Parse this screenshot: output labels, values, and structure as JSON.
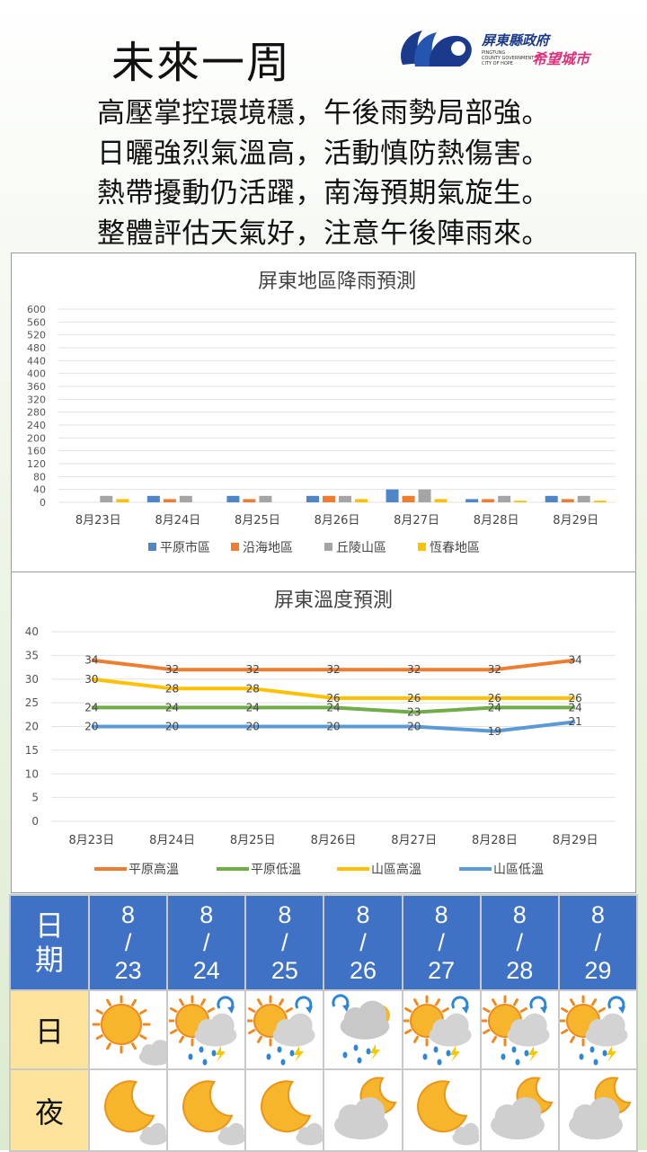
{
  "header": {
    "title": "未來一周"
  },
  "logo": {
    "name": "屏東縣政府",
    "slogan": "希望城市",
    "small_text": [
      "PINGTUNG",
      "COUNTY GOVERNMENT",
      "CITY OF HOPE"
    ]
  },
  "poem": [
    "高壓掌控環境穩，午後雨勢局部強。",
    "日曬強烈氣溫高，活動慎防熱傷害。",
    "熱帶擾動仍活躍，南海預期氣旋生。",
    "整體評估天氣好，注意午後陣雨來。"
  ],
  "chart_data": [
    {
      "type": "bar",
      "title": "屏東地區降雨預測",
      "categories": [
        "8月23日",
        "8月24日",
        "8月25日",
        "8月26日",
        "8月27日",
        "8月28日",
        "8月29日"
      ],
      "ylim": [
        0,
        600
      ],
      "yticks": [
        0,
        40,
        80,
        120,
        160,
        200,
        240,
        280,
        320,
        360,
        400,
        440,
        480,
        520,
        560,
        600
      ],
      "grid": true,
      "legend_position": "bottom",
      "series": [
        {
          "name": "平原市區",
          "color": "#4f86c6",
          "values": [
            0,
            20,
            20,
            20,
            40,
            10,
            20
          ]
        },
        {
          "name": "沿海地區",
          "color": "#ed7d31",
          "values": [
            0,
            10,
            10,
            20,
            20,
            10,
            10
          ]
        },
        {
          "name": "丘陵山區",
          "color": "#a5a5a5",
          "values": [
            20,
            20,
            20,
            20,
            40,
            20,
            20
          ]
        },
        {
          "name": "恆春地區",
          "color": "#ffc000",
          "values": [
            10,
            0,
            0,
            10,
            10,
            5,
            5
          ]
        }
      ]
    },
    {
      "type": "line",
      "title": "屏東溫度預測",
      "categories": [
        "8月23日",
        "8月24日",
        "8月25日",
        "8月26日",
        "8月27日",
        "8月28日",
        "8月29日"
      ],
      "ylim": [
        0,
        40
      ],
      "yticks": [
        0,
        5,
        10,
        15,
        20,
        25,
        30,
        35,
        40
      ],
      "grid": true,
      "legend_position": "bottom",
      "series": [
        {
          "name": "平原高溫",
          "color": "#ed7d31",
          "values": [
            34,
            32,
            32,
            32,
            32,
            32,
            34
          ]
        },
        {
          "name": "平原低溫",
          "color": "#70ad47",
          "values": [
            24,
            24,
            24,
            24,
            23,
            24,
            24
          ]
        },
        {
          "name": "山區高溫",
          "color": "#ffc000",
          "values": [
            30,
            28,
            28,
            26,
            26,
            26,
            26
          ]
        },
        {
          "name": "山區低溫",
          "color": "#5b9bd5",
          "values": [
            20,
            20,
            20,
            20,
            20,
            19,
            21
          ]
        }
      ]
    }
  ],
  "forecast": {
    "date_label": [
      "日",
      "期"
    ],
    "day_label": "日",
    "night_label": "夜",
    "days": [
      {
        "month": "8",
        "sep": "/",
        "day": "23",
        "day_icon": "sunny-cloud-icon",
        "night_icon": "moon-cloud-icon"
      },
      {
        "month": "8",
        "sep": "/",
        "day": "24",
        "day_icon": "sun-cloud-thunder-rain-icon",
        "night_icon": "moon-cloud-icon"
      },
      {
        "month": "8",
        "sep": "/",
        "day": "25",
        "day_icon": "sun-cloud-thunder-rain-icon",
        "night_icon": "moon-cloud-icon"
      },
      {
        "month": "8",
        "sep": "/",
        "day": "26",
        "day_icon": "cloud-thunder-rain-icon",
        "night_icon": "cloud-moon-icon"
      },
      {
        "month": "8",
        "sep": "/",
        "day": "27",
        "day_icon": "sun-cloud-thunder-rain-icon",
        "night_icon": "moon-cloud-icon"
      },
      {
        "month": "8",
        "sep": "/",
        "day": "28",
        "day_icon": "sun-cloud-thunder-rain-icon",
        "night_icon": "cloud-moon-icon"
      },
      {
        "month": "8",
        "sep": "/",
        "day": "29",
        "day_icon": "sun-cloud-thunder-rain-icon",
        "night_icon": "cloud-moon-icon"
      }
    ]
  }
}
